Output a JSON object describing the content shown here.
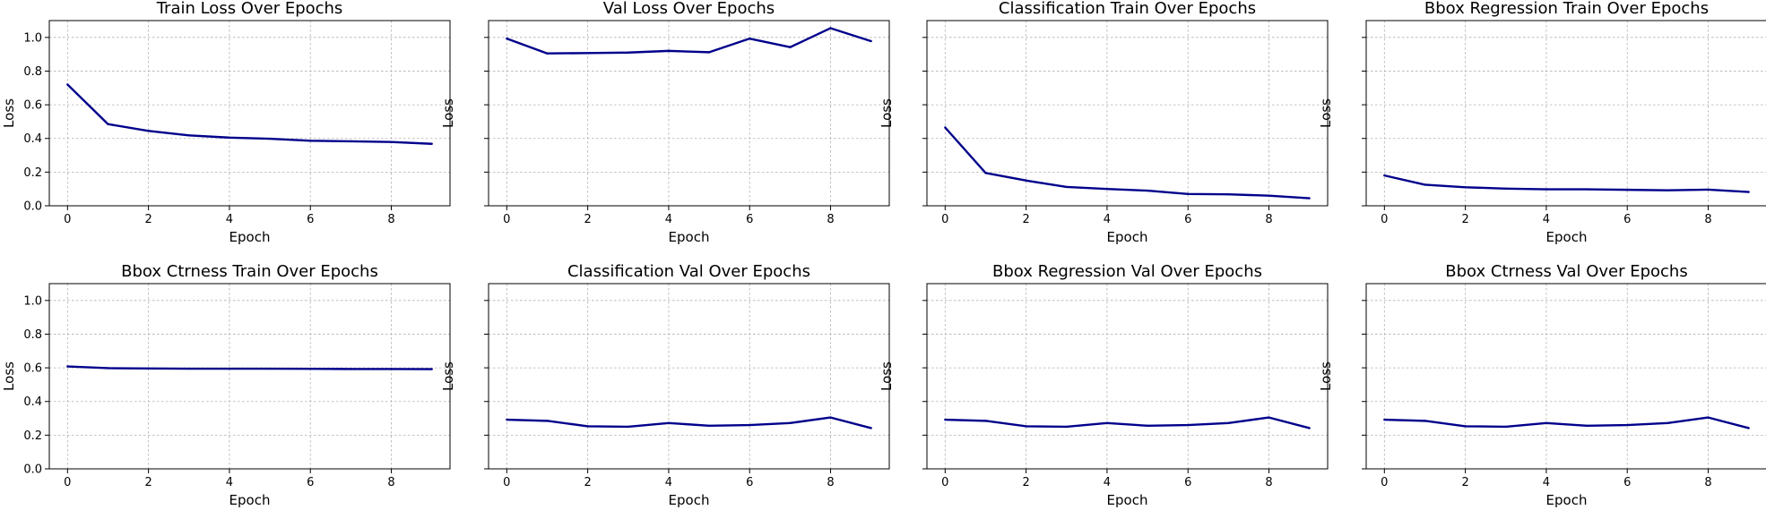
{
  "chart_data": [
    {
      "type": "line",
      "title": "Train Loss Over Epochs",
      "xlabel": "Epoch",
      "ylabel": "Loss",
      "x": [
        0,
        1,
        2,
        3,
        4,
        5,
        6,
        7,
        8,
        9
      ],
      "series": [
        {
          "values": [
            0.72,
            0.485,
            0.445,
            0.418,
            0.405,
            0.398,
            0.386,
            0.383,
            0.379,
            0.368
          ]
        }
      ],
      "xlim": [
        -0.45,
        9.45
      ],
      "ylim": [
        0,
        1.1
      ],
      "xticks": [
        "0",
        "2",
        "4",
        "6",
        "8"
      ],
      "yticks": [
        "0.0",
        "0.2",
        "0.4",
        "0.6",
        "0.8",
        "1.0"
      ],
      "grid": true,
      "line_color": "#00008b"
    },
    {
      "type": "line",
      "title": "Val Loss Over Epochs",
      "xlabel": "Epoch",
      "ylabel": "Loss",
      "x": [
        0,
        1,
        2,
        3,
        4,
        5,
        6,
        7,
        8,
        9
      ],
      "series": [
        {
          "values": [
            0.993,
            0.905,
            0.907,
            0.91,
            0.92,
            0.912,
            0.993,
            0.942,
            1.055,
            0.978
          ]
        }
      ],
      "xlim": [
        -0.45,
        9.45
      ],
      "ylim": [
        0,
        1.1
      ],
      "xticks": [
        "0",
        "2",
        "4",
        "6",
        "8"
      ],
      "yticks": [],
      "grid": true,
      "line_color": "#00008b"
    },
    {
      "type": "line",
      "title": "Classification Train Over Epochs",
      "xlabel": "Epoch",
      "ylabel": "Loss",
      "x": [
        0,
        1,
        2,
        3,
        4,
        5,
        6,
        7,
        8,
        9
      ],
      "series": [
        {
          "values": [
            0.465,
            0.195,
            0.15,
            0.112,
            0.1,
            0.09,
            0.07,
            0.068,
            0.06,
            0.045
          ]
        }
      ],
      "xlim": [
        -0.45,
        9.45
      ],
      "ylim": [
        0,
        1.1
      ],
      "xticks": [
        "0",
        "2",
        "4",
        "6",
        "8"
      ],
      "yticks": [],
      "grid": true,
      "line_color": "#00008b"
    },
    {
      "type": "line",
      "title": "Bbox Regression Train Over Epochs",
      "xlabel": "Epoch",
      "ylabel": "Loss",
      "x": [
        0,
        1,
        2,
        3,
        4,
        5,
        6,
        7,
        8,
        9
      ],
      "series": [
        {
          "values": [
            0.18,
            0.125,
            0.11,
            0.102,
            0.098,
            0.098,
            0.095,
            0.092,
            0.096,
            0.082
          ]
        }
      ],
      "xlim": [
        -0.45,
        9.45
      ],
      "ylim": [
        0,
        1.1
      ],
      "xticks": [
        "0",
        "2",
        "4",
        "6",
        "8"
      ],
      "yticks": [],
      "grid": true,
      "line_color": "#00008b"
    },
    {
      "type": "line",
      "title": "Bbox Ctrness Train Over Epochs",
      "xlabel": "Epoch",
      "ylabel": "Loss",
      "x": [
        0,
        1,
        2,
        3,
        4,
        5,
        6,
        7,
        8,
        9
      ],
      "series": [
        {
          "values": [
            0.608,
            0.598,
            0.596,
            0.595,
            0.595,
            0.595,
            0.594,
            0.593,
            0.593,
            0.592
          ]
        }
      ],
      "xlim": [
        -0.45,
        9.45
      ],
      "ylim": [
        0,
        1.1
      ],
      "xticks": [
        "0",
        "2",
        "4",
        "6",
        "8"
      ],
      "yticks": [
        "0.0",
        "0.2",
        "0.4",
        "0.6",
        "0.8",
        "1.0"
      ],
      "grid": true,
      "line_color": "#00008b"
    },
    {
      "type": "line",
      "title": "Classification Val Over Epochs",
      "xlabel": "Epoch",
      "ylabel": "Loss",
      "x": [
        0,
        1,
        2,
        3,
        4,
        5,
        6,
        7,
        8,
        9
      ],
      "series": [
        {
          "values": [
            0.292,
            0.285,
            0.253,
            0.25,
            0.272,
            0.256,
            0.26,
            0.272,
            0.305,
            0.242
          ]
        }
      ],
      "xlim": [
        -0.45,
        9.45
      ],
      "ylim": [
        0,
        1.1
      ],
      "xticks": [
        "0",
        "2",
        "4",
        "6",
        "8"
      ],
      "yticks": [],
      "grid": true,
      "line_color": "#00008b"
    },
    {
      "type": "line",
      "title": "Bbox Regression Val Over Epochs",
      "xlabel": "Epoch",
      "ylabel": "Loss",
      "x": [
        0,
        1,
        2,
        3,
        4,
        5,
        6,
        7,
        8,
        9
      ],
      "series": [
        {
          "values": [
            0.292,
            0.285,
            0.253,
            0.25,
            0.272,
            0.256,
            0.26,
            0.272,
            0.305,
            0.242
          ]
        }
      ],
      "xlim": [
        -0.45,
        9.45
      ],
      "ylim": [
        0,
        1.1
      ],
      "xticks": [
        "0",
        "2",
        "4",
        "6",
        "8"
      ],
      "yticks": [],
      "grid": true,
      "line_color": "#00008b"
    },
    {
      "type": "line",
      "title": "Bbox Ctrness Val Over Epochs",
      "xlabel": "Epoch",
      "ylabel": "Loss",
      "x": [
        0,
        1,
        2,
        3,
        4,
        5,
        6,
        7,
        8,
        9
      ],
      "series": [
        {
          "values": [
            0.292,
            0.285,
            0.253,
            0.25,
            0.272,
            0.256,
            0.26,
            0.272,
            0.305,
            0.242
          ]
        }
      ],
      "xlim": [
        -0.45,
        9.45
      ],
      "ylim": [
        0,
        1.1
      ],
      "xticks": [
        "0",
        "2",
        "4",
        "6",
        "8"
      ],
      "yticks": [],
      "grid": true,
      "line_color": "#00008b"
    }
  ]
}
